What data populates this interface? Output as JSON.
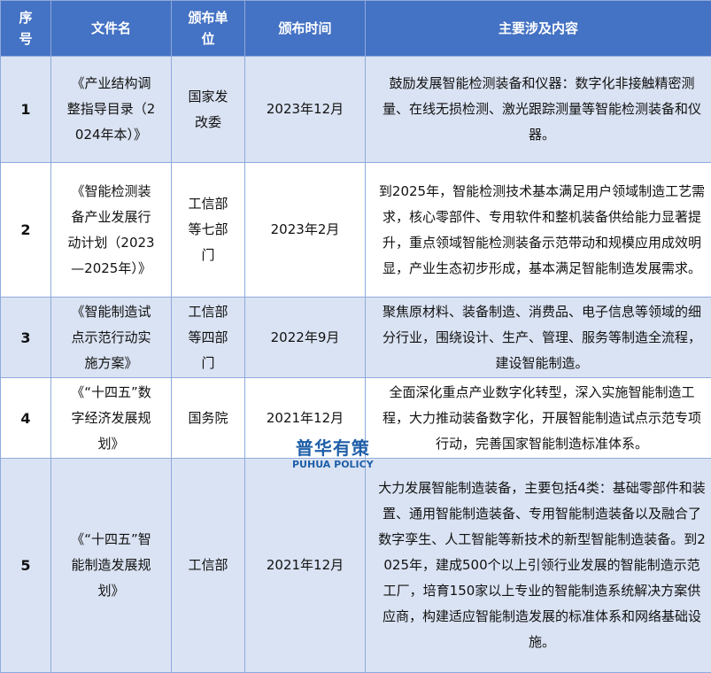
{
  "headers": [
    "序号",
    "文件名",
    "颁布单位",
    "颁布时间",
    "主要涉及内容"
  ],
  "rows": [
    {
      "no": "1",
      "name": "《产业结构调整指导目录（2024年本）》",
      "issuer": "国家发改委",
      "date": "2023年12月",
      "content": "鼓励发展智能检测装备和仪器：数字化非接触精密测量、在线无损检测、激光跟踪测量等智能检测装备和仪器。"
    },
    {
      "no": "2",
      "name": "《智能检测装备产业发展行动计划（2023—2025年）》",
      "issuer": "工信部等七部门",
      "date": "2023年2月",
      "content": "到2025年，智能检测技术基本满足用户领域制造工艺需求，核心零部件、专用软件和整机装备供给能力显著提升，重点领域智能检测装备示范带动和规模应用成效明显，产业生态初步形成，基本满足智能制造发展需求。"
    },
    {
      "no": "3",
      "name": "《智能制造试点示范行动实施方案》",
      "issuer": "工信部等四部门",
      "date": "2022年9月",
      "content": "聚焦原材料、装备制造、消费品、电子信息等领域的细分行业，围绕设计、生产、管理、服务等制造全流程，建设智能制造。"
    },
    {
      "no": "4",
      "name": "《“十四五”数字经济发展规划》",
      "issuer": "国务院",
      "date": "2021年12月",
      "content": "全面深化重点产业数字化转型，深入实施智能制造工程，大力推动装备数字化，开展智能制造试点示范专项行动，完善国家智能制造标准体系。"
    },
    {
      "no": "5",
      "name": "《“十四五”智能制造发展规划》",
      "issuer": "工信部",
      "date": "2021年12月",
      "content": "大力发展智能制造装备，主要包括4类：基础零部件和装置、通用智能制造装备、专用智能制造装备以及融合了数字孪生、人工智能等新技术的新型智能制造装备。到2025年，建成500个以上引领行业发展的智能制造示范工厂，培育150家以上专业的智能制造系统解决方案供应商，构建适应智能制造发展的标准体系和网络基础设施。"
    }
  ],
  "watermark": {
    "cn": "普华有策",
    "en": "PUHUA POLICY"
  },
  "colors": {
    "header_bg": "#4472c4",
    "row_alt_bg": "#dae3f3",
    "border": "#8eaadb"
  }
}
